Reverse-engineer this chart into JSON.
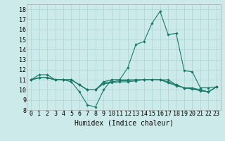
{
  "xlabel": "Humidex (Indice chaleur)",
  "bg_color": "#cceaea",
  "line_color": "#1a7a6a",
  "grid_color": "#aad4d4",
  "xlim": [
    -0.5,
    23.5
  ],
  "ylim": [
    8,
    18.5
  ],
  "xticks": [
    0,
    1,
    2,
    3,
    4,
    5,
    6,
    7,
    8,
    9,
    10,
    11,
    12,
    13,
    14,
    15,
    16,
    17,
    18,
    19,
    20,
    21,
    22,
    23
  ],
  "yticks": [
    8,
    9,
    10,
    11,
    12,
    13,
    14,
    15,
    16,
    17,
    18
  ],
  "series": [
    [
      11.0,
      11.5,
      11.5,
      11.0,
      11.0,
      10.8,
      9.8,
      8.5,
      8.3,
      10.0,
      11.0,
      11.0,
      12.2,
      14.5,
      14.8,
      16.6,
      17.8,
      15.5,
      15.6,
      11.9,
      11.8,
      10.2,
      10.2,
      10.3
    ],
    [
      11.0,
      11.2,
      11.2,
      11.0,
      11.0,
      11.0,
      10.5,
      10.0,
      10.0,
      10.8,
      11.0,
      11.0,
      11.0,
      11.0,
      11.0,
      11.0,
      11.0,
      11.0,
      10.5,
      10.2,
      10.2,
      10.0,
      9.8,
      10.3
    ],
    [
      11.0,
      11.2,
      11.2,
      11.0,
      11.0,
      11.0,
      10.5,
      10.0,
      10.0,
      10.7,
      10.8,
      10.9,
      10.9,
      11.0,
      11.0,
      11.0,
      11.0,
      10.8,
      10.5,
      10.2,
      10.1,
      10.0,
      9.8,
      10.3
    ],
    [
      11.0,
      11.2,
      11.2,
      11.0,
      11.0,
      11.0,
      10.5,
      10.0,
      10.0,
      10.6,
      10.7,
      10.8,
      10.8,
      10.9,
      11.0,
      11.0,
      11.0,
      10.7,
      10.4,
      10.2,
      10.1,
      9.9,
      9.8,
      10.3
    ]
  ],
  "tick_fontsize": 6.0,
  "xlabel_fontsize": 7.0
}
